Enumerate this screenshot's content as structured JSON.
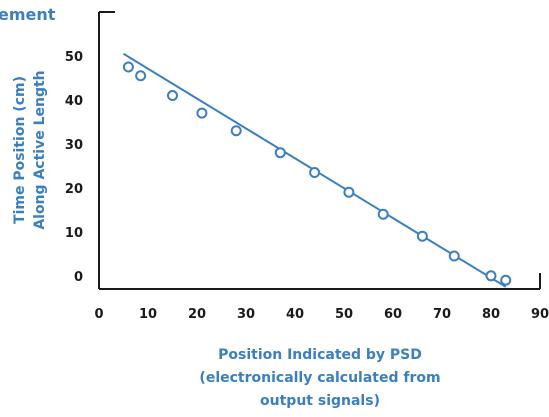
{
  "chart_data": {
    "type": "scatter",
    "title": "ement",
    "ylabel": [
      "Time Position (cm)",
      "Along Active Length"
    ],
    "xlabel": [
      "Position Indicated by PSD",
      "(electronically calculated from",
      "output signals)"
    ],
    "xlim": [
      0,
      90
    ],
    "ylim": [
      -3,
      60
    ],
    "xticks": [
      0,
      10,
      20,
      30,
      40,
      50,
      60,
      70,
      80,
      90
    ],
    "yticks": [
      0,
      10,
      20,
      30,
      40,
      50
    ],
    "grid": false,
    "series": [
      {
        "points": [
          [
            6,
            47.5
          ],
          [
            8.5,
            45.5
          ],
          [
            15,
            41
          ],
          [
            21,
            37
          ],
          [
            28,
            33
          ],
          [
            37,
            28
          ],
          [
            44,
            23.5
          ],
          [
            51,
            19
          ],
          [
            58,
            14
          ],
          [
            66,
            9
          ],
          [
            72.5,
            4.5
          ],
          [
            80,
            0
          ],
          [
            83,
            -1
          ]
        ]
      }
    ],
    "fit_line": [
      [
        5,
        50.5
      ],
      [
        83,
        -2.5
      ]
    ],
    "colors": {
      "accent": "#3b7fc0",
      "axis": "#1a1a1a"
    }
  }
}
